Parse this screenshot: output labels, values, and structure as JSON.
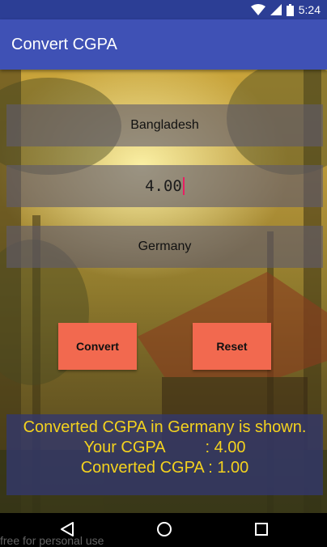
{
  "status_bar": {
    "time": "5:24",
    "icons": [
      "wifi-icon",
      "signal-icon",
      "battery-icon"
    ]
  },
  "app_bar": {
    "title": "Convert CGPA"
  },
  "form": {
    "from_country": "Bangladesh",
    "cgpa_value": "4.00",
    "to_country": "Germany"
  },
  "buttons": {
    "convert_label": "Convert",
    "reset_label": "Reset"
  },
  "result": {
    "line1": "Converted CGPA in Germany is shown.",
    "line2": "Your CGPA         : 4.00",
    "line3": "Converted CGPA : 1.00"
  },
  "nav_bar": {
    "icons": [
      "back-icon",
      "home-icon",
      "recents-icon"
    ]
  },
  "watermark": "free for personal use",
  "colors": {
    "app_bar": "#3f51b5",
    "status_bar": "#2c3e95",
    "button": "#f2694f",
    "result_text": "#f4d21e"
  }
}
